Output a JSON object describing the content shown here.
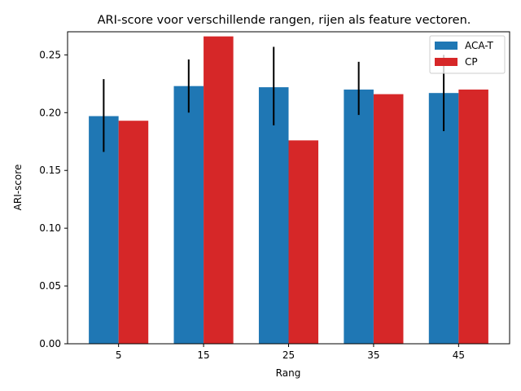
{
  "chart_data": {
    "type": "bar",
    "title": "ARI-score voor verschillende rangen, rijen als feature vectoren.",
    "xlabel": "Rang",
    "ylabel": "ARI-score",
    "categories": [
      "5",
      "15",
      "25",
      "35",
      "45"
    ],
    "ylim": [
      0,
      0.27
    ],
    "yticks": [
      "0.00",
      "0.05",
      "0.10",
      "0.15",
      "0.20",
      "0.25"
    ],
    "grid": false,
    "legend_position": "top-right",
    "series": [
      {
        "name": "ACA-T",
        "color": "#1f77b4",
        "values": [
          0.197,
          0.223,
          0.222,
          0.22,
          0.217
        ],
        "error_low": [
          0.166,
          0.2,
          0.189,
          0.198,
          0.184
        ],
        "error_high": [
          0.229,
          0.246,
          0.257,
          0.244,
          0.25
        ]
      },
      {
        "name": "CP",
        "color": "#d62728",
        "values": [
          0.193,
          0.266,
          0.176,
          0.216,
          0.22
        ]
      }
    ]
  }
}
